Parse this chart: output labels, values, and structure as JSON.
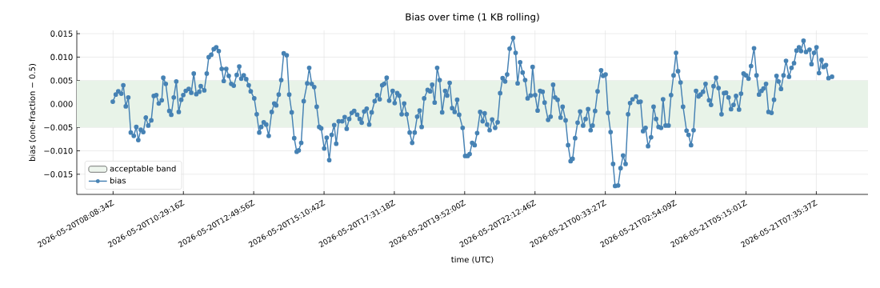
{
  "chart_data": {
    "type": "line",
    "title": "Bias over time (1 KB rolling)",
    "xlabel": "time (UTC)",
    "ylabel": "bias (one-fraction − 0.5)",
    "xlim": [
      "2026-05-20T06:56",
      "2026-05-21T09:19"
    ],
    "ylim": [
      -0.0193,
      0.0157
    ],
    "xticks": [
      {
        "value": "2026-05-20T08:08:34",
        "label": "2026-05-20T08:08:34Z"
      },
      {
        "value": "2026-05-20T10:29:16",
        "label": "2026-05-20T10:29:16Z"
      },
      {
        "value": "2026-05-20T12:49:56",
        "label": "2026-05-20T12:49:56Z"
      },
      {
        "value": "2026-05-20T15:10:42",
        "label": "2026-05-20T15:10:42Z"
      },
      {
        "value": "2026-05-20T17:31:18",
        "label": "2026-05-20T17:31:18Z"
      },
      {
        "value": "2026-05-20T19:52:00",
        "label": "2026-05-20T19:52:00Z"
      },
      {
        "value": "2026-05-20T22:12:46",
        "label": "2026-05-20T22:12:46Z"
      },
      {
        "value": "2026-05-21T00:33:27",
        "label": "2026-05-21T00:33:27Z"
      },
      {
        "value": "2026-05-21T02:54:09",
        "label": "2026-05-21T02:54:09Z"
      },
      {
        "value": "2026-05-21T05:15:01",
        "label": "2026-05-21T05:15:01Z"
      },
      {
        "value": "2026-05-21T07:35:37",
        "label": "2026-05-21T07:35:37Z"
      }
    ],
    "yticks": [
      {
        "value": -0.015,
        "label": "−0.015"
      },
      {
        "value": -0.01,
        "label": "−0.010"
      },
      {
        "value": -0.005,
        "label": "−0.005"
      },
      {
        "value": 0,
        "label": "0.000"
      },
      {
        "value": 0.005,
        "label": "0.005"
      },
      {
        "value": 0.01,
        "label": "0.010"
      },
      {
        "value": 0.015,
        "label": "0.015"
      }
    ],
    "grid": true,
    "legend": "bottom left",
    "marker": "circle",
    "line_style": "solid",
    "bands": [
      {
        "axis": "y",
        "from": -0.005,
        "to": 0.005,
        "label": "acceptable band",
        "color": "#e8f3e8"
      }
    ],
    "series": [
      {
        "name": "bias",
        "color": "#4682b4",
        "x": [
          "2026-05-20T08:08",
          "2026-05-20T08:14",
          "2026-05-20T08:19",
          "2026-05-20T08:25",
          "2026-05-20T08:29",
          "2026-05-20T08:34",
          "2026-05-20T08:39",
          "2026-05-20T08:44",
          "2026-05-20T08:50",
          "2026-05-20T08:55",
          "2026-05-20T08:59",
          "2026-05-20T09:04",
          "2026-05-20T09:09",
          "2026-05-20T09:14",
          "2026-05-20T09:19",
          "2026-05-20T09:25",
          "2026-05-20T09:30",
          "2026-05-20T09:35",
          "2026-05-20T09:40",
          "2026-05-20T09:46",
          "2026-05-20T09:49",
          "2026-05-20T09:54",
          "2026-05-20T10:01",
          "2026-05-20T10:05",
          "2026-05-20T10:10",
          "2026-05-20T10:15",
          "2026-05-20T10:20",
          "2026-05-20T10:25",
          "2026-05-20T10:29",
          "2026-05-20T10:34",
          "2026-05-20T10:40",
          "2026-05-20T10:45",
          "2026-05-20T10:50",
          "2026-05-20T10:55",
          "2026-05-20T11:01",
          "2026-05-20T11:04",
          "2026-05-20T11:11",
          "2026-05-20T11:16",
          "2026-05-20T11:20",
          "2026-05-20T11:25",
          "2026-05-20T11:30",
          "2026-05-20T11:35",
          "2026-05-20T11:40",
          "2026-05-20T11:46",
          "2026-05-20T11:50",
          "2026-05-20T11:55",
          "2026-05-20T12:00",
          "2026-05-20T12:05",
          "2026-05-20T12:10",
          "2026-05-20T12:16",
          "2026-05-20T12:21",
          "2026-05-20T12:25",
          "2026-05-20T12:30",
          "2026-05-20T12:35",
          "2026-05-20T12:40",
          "2026-05-20T12:44",
          "2026-05-20T12:51",
          "2026-05-20T12:56",
          "2026-05-20T13:01",
          "2026-05-20T13:05",
          "2026-05-20T13:10",
          "2026-05-20T13:15",
          "2026-05-20T13:20",
          "2026-05-20T13:26",
          "2026-05-20T13:31",
          "2026-05-20T13:35",
          "2026-05-20T13:40",
          "2026-05-20T13:45",
          "2026-05-20T13:50",
          "2026-05-20T13:56",
          "2026-05-20T14:01",
          "2026-05-20T14:06",
          "2026-05-20T14:11",
          "2026-05-20T14:16",
          "2026-05-20T14:20",
          "2026-05-20T14:25",
          "2026-05-20T14:30",
          "2026-05-20T14:37",
          "2026-05-20T14:41",
          "2026-05-20T14:46",
          "2026-05-20T14:51",
          "2026-05-20T14:56",
          "2026-05-20T15:01",
          "2026-05-20T15:05",
          "2026-05-20T15:11",
          "2026-05-20T15:16",
          "2026-05-20T15:21",
          "2026-05-20T15:26",
          "2026-05-20T15:31",
          "2026-05-20T15:35",
          "2026-05-20T15:40",
          "2026-05-20T15:47",
          "2026-05-20T15:52",
          "2026-05-20T15:56",
          "2026-05-20T16:01",
          "2026-05-20T16:06",
          "2026-05-20T16:11",
          "2026-05-20T16:17",
          "2026-05-20T16:22",
          "2026-05-20T16:26",
          "2026-05-20T16:31",
          "2026-05-20T16:36",
          "2026-05-20T16:41",
          "2026-05-20T16:46",
          "2026-05-20T16:52",
          "2026-05-20T16:57",
          "2026-05-20T17:02",
          "2026-05-20T17:07",
          "2026-05-20T17:11",
          "2026-05-20T17:16",
          "2026-05-20T17:21",
          "2026-05-20T17:28",
          "2026-05-20T17:32",
          "2026-05-20T17:37",
          "2026-05-20T17:41",
          "2026-05-20T17:46",
          "2026-05-20T17:51",
          "2026-05-20T17:56",
          "2026-05-20T18:02",
          "2026-05-20T18:07",
          "2026-05-20T18:12",
          "2026-05-20T18:17",
          "2026-05-20T18:22",
          "2026-05-20T18:26",
          "2026-05-20T18:31",
          "2026-05-20T18:38",
          "2026-05-20T18:43",
          "2026-05-20T18:47",
          "2026-05-20T18:52",
          "2026-05-20T18:57",
          "2026-05-20T19:02",
          "2026-05-20T19:07",
          "2026-05-20T19:13",
          "2026-05-20T19:17",
          "2026-05-20T19:22",
          "2026-05-20T19:27",
          "2026-05-20T19:32",
          "2026-05-20T19:37",
          "2026-05-20T19:41",
          "2026-05-20T19:48",
          "2026-05-20T19:53",
          "2026-05-20T19:58",
          "2026-05-20T20:02",
          "2026-05-20T20:07",
          "2026-05-20T20:12",
          "2026-05-20T20:17",
          "2026-05-20T20:23",
          "2026-05-20T20:28",
          "2026-05-20T20:32",
          "2026-05-20T20:37",
          "2026-05-20T20:42",
          "2026-05-20T20:47",
          "2026-05-20T20:53",
          "2026-05-20T20:58",
          "2026-05-20T21:03",
          "2026-05-20T21:08",
          "2026-05-20T21:13",
          "2026-05-20T21:17",
          "2026-05-20T21:22",
          "2026-05-20T21:29",
          "2026-05-20T21:34",
          "2026-05-20T21:38",
          "2026-05-20T21:43",
          "2026-05-20T21:48",
          "2026-05-20T21:53",
          "2026-05-20T21:58",
          "2026-05-20T22:04",
          "2026-05-20T22:08",
          "2026-05-20T22:13",
          "2026-05-20T22:18",
          "2026-05-20T22:23",
          "2026-05-20T22:28",
          "2026-05-20T22:32",
          "2026-05-20T22:39",
          "2026-05-20T22:44",
          "2026-05-20T22:49",
          "2026-05-20T22:53",
          "2026-05-20T22:58",
          "2026-05-20T23:04",
          "2026-05-20T23:08",
          "2026-05-20T23:14",
          "2026-05-20T23:19",
          "2026-05-20T23:24",
          "2026-05-20T23:28",
          "2026-05-20T23:33",
          "2026-05-20T23:38",
          "2026-05-20T23:43",
          "2026-05-20T23:49",
          "2026-05-20T23:54",
          "2026-05-20T23:59",
          "2026-05-21T00:04",
          "2026-05-21T00:08",
          "2026-05-21T00:13",
          "2026-05-21T00:18",
          "2026-05-21T00:25",
          "2026-05-21T00:29",
          "2026-05-21T00:34",
          "2026-05-21T00:39",
          "2026-05-21T00:44",
          "2026-05-21T00:49",
          "2026-05-21T00:53",
          "2026-05-21T00:59",
          "2026-05-21T01:04",
          "2026-05-21T01:09",
          "2026-05-21T01:14",
          "2026-05-21T01:19",
          "2026-05-21T01:23",
          "2026-05-21T01:28",
          "2026-05-21T01:35",
          "2026-05-21T01:40",
          "2026-05-21T01:44",
          "2026-05-21T01:49",
          "2026-05-21T01:54",
          "2026-05-21T01:59",
          "2026-05-21T02:05",
          "2026-05-21T02:10",
          "2026-05-21T02:15",
          "2026-05-21T02:20",
          "2026-05-21T02:25",
          "2026-05-21T02:29",
          "2026-05-21T02:34",
          "2026-05-21T02:40",
          "2026-05-21T02:45",
          "2026-05-21T02:50",
          "2026-05-21T02:55",
          "2026-05-21T02:59",
          "2026-05-21T03:04",
          "2026-05-21T03:09",
          "2026-05-21T03:16",
          "2026-05-21T03:20",
          "2026-05-21T03:25",
          "2026-05-21T03:30",
          "2026-05-21T03:35",
          "2026-05-21T03:40",
          "2026-05-21T03:44",
          "2026-05-21T03:49",
          "2026-05-21T03:54",
          "2026-05-21T04:01",
          "2026-05-21T04:05",
          "2026-05-21T04:10",
          "2026-05-21T04:15",
          "2026-05-21T04:20",
          "2026-05-21T04:26",
          "2026-05-21T04:31",
          "2026-05-21T04:35",
          "2026-05-21T04:40",
          "2026-05-21T04:45",
          "2026-05-21T04:50",
          "2026-05-21T04:55",
          "2026-05-21T05:01",
          "2026-05-21T05:05",
          "2026-05-21T05:10",
          "2026-05-21T05:15",
          "2026-05-21T05:20",
          "2026-05-21T05:25",
          "2026-05-21T05:31",
          "2026-05-21T05:36",
          "2026-05-21T05:41",
          "2026-05-21T05:46",
          "2026-05-21T05:50",
          "2026-05-21T05:55",
          "2026-05-21T06:00",
          "2026-05-21T06:06",
          "2026-05-21T06:11",
          "2026-05-21T06:16",
          "2026-05-21T06:20",
          "2026-05-21T06:25",
          "2026-05-21T06:30",
          "2026-05-21T06:35",
          "2026-05-21T06:41",
          "2026-05-21T06:46",
          "2026-05-21T06:51",
          "2026-05-21T06:56",
          "2026-05-21T07:01",
          "2026-05-21T07:05",
          "2026-05-21T07:10",
          "2026-05-21T07:15",
          "2026-05-21T07:22",
          "2026-05-21T07:26",
          "2026-05-21T07:31",
          "2026-05-21T07:36",
          "2026-05-21T07:41",
          "2026-05-21T07:46",
          "2026-05-21T07:50",
          "2026-05-21T07:55",
          "2026-05-21T08:00",
          "2026-05-21T08:07"
        ],
        "values": [
          0.0005,
          0.002,
          0.0027,
          0.0022,
          0.004,
          -0.0005,
          0.0014,
          -0.0061,
          -0.0068,
          -0.0049,
          -0.0077,
          -0.0055,
          -0.006,
          -0.0029,
          -0.0046,
          -0.0035,
          0.0017,
          0.0019,
          0.0001,
          0.0008,
          0.0056,
          0.0043,
          -0.0015,
          -0.0023,
          0.0014,
          0.0048,
          -0.0017,
          0.0009,
          0.0019,
          0.0028,
          0.0032,
          0.0024,
          0.0065,
          0.0021,
          0.0026,
          0.0038,
          0.0029,
          0.0065,
          0.01,
          0.0105,
          0.0117,
          0.0121,
          0.0113,
          0.0075,
          0.0049,
          0.0075,
          0.006,
          0.0043,
          0.0039,
          0.0062,
          0.008,
          0.0054,
          0.0061,
          0.0053,
          0.004,
          0.0027,
          0.0012,
          -0.0022,
          -0.0061,
          -0.0049,
          -0.0039,
          -0.0044,
          -0.0068,
          -0.0017,
          0.0001,
          -0.0003,
          0.002,
          0.0051,
          0.0108,
          0.0104,
          0.002,
          -0.0018,
          -0.0073,
          -0.0102,
          -0.0099,
          -0.0083,
          0.0006,
          0.0044,
          0.0077,
          0.0043,
          0.0036,
          -0.0006,
          -0.0049,
          -0.0052,
          -0.0095,
          -0.0072,
          -0.012,
          -0.0066,
          -0.0045,
          -0.0085,
          -0.0037,
          -0.0037,
          -0.0028,
          -0.0053,
          -0.0032,
          -0.0019,
          -0.0015,
          -0.0023,
          -0.0032,
          -0.004,
          -0.0016,
          -0.001,
          -0.0044,
          -0.0018,
          0.0006,
          0.0019,
          0.001,
          0.004,
          0.0043,
          0.0056,
          0.0007,
          0.0028,
          0.0002,
          0.0023,
          0.0018,
          -0.0022,
          0.0001,
          -0.0022,
          -0.0061,
          -0.0083,
          -0.0061,
          -0.0027,
          -0.0014,
          -0.0049,
          0.0012,
          0.003,
          0.0027,
          0.0041,
          0.0003,
          0.0077,
          0.0051,
          -0.0018,
          0.0028,
          0.0018,
          0.0045,
          -0.0009,
          -0.0017,
          0.0009,
          -0.0023,
          -0.0051,
          -0.0111,
          -0.0111,
          -0.0107,
          -0.0083,
          -0.0088,
          -0.0062,
          -0.0017,
          -0.0037,
          -0.002,
          -0.0044,
          -0.0056,
          -0.0033,
          -0.0051,
          -0.0039,
          0.0023,
          0.0055,
          0.0048,
          0.0063,
          0.0118,
          0.0141,
          0.0109,
          0.0044,
          0.0089,
          0.0067,
          0.0051,
          0.0012,
          0.0018,
          0.0079,
          0.0019,
          -0.0014,
          0.0028,
          0.0026,
          0.0003,
          -0.0034,
          -0.0027,
          0.0041,
          0.0014,
          0.0009,
          -0.0029,
          -0.0006,
          -0.0035,
          -0.0088,
          -0.0122,
          -0.0117,
          -0.0073,
          -0.004,
          -0.0016,
          -0.0046,
          -0.0032,
          -0.0011,
          -0.0056,
          -0.0046,
          -0.0015,
          0.0027,
          0.0072,
          0.006,
          0.0063,
          -0.0019,
          -0.006,
          -0.0128,
          -0.0175,
          -0.0174,
          -0.0137,
          -0.011,
          -0.0128,
          -0.0022,
          0.0002,
          0.001,
          0.0016,
          0.0004,
          0.0005,
          -0.0058,
          -0.0051,
          -0.009,
          -0.0071,
          -0.0006,
          -0.0032,
          -0.0049,
          -0.0051,
          0.001,
          -0.0046,
          -0.0046,
          0.0019,
          0.0061,
          0.0109,
          0.007,
          0.0046,
          -0.0006,
          -0.0057,
          -0.0066,
          -0.0088,
          -0.0056,
          0.0028,
          0.0016,
          0.002,
          0.0026,
          0.0043,
          0.0008,
          -0.0002,
          0.0038,
          0.0056,
          0.0034,
          -0.0022,
          0.0023,
          0.0024,
          0.0014,
          -0.0011,
          -0.0002,
          0.0017,
          -0.0012,
          0.0022,
          0.0065,
          0.0061,
          0.0054,
          0.0081,
          0.0119,
          0.0061,
          0.002,
          0.0028,
          0.0033,
          0.0043,
          -0.0017,
          -0.0019,
          0.0009,
          0.006,
          0.0048,
          0.0032,
          0.0061,
          0.0092,
          0.0058,
          0.0077,
          0.0087,
          0.0114,
          0.0121,
          0.0113,
          0.0135,
          0.0111,
          0.0116,
          0.0085,
          0.0109,
          0.0121,
          0.0066,
          0.0094,
          0.0079,
          0.0083,
          0.0055,
          0.0058
        ]
      }
    ]
  }
}
